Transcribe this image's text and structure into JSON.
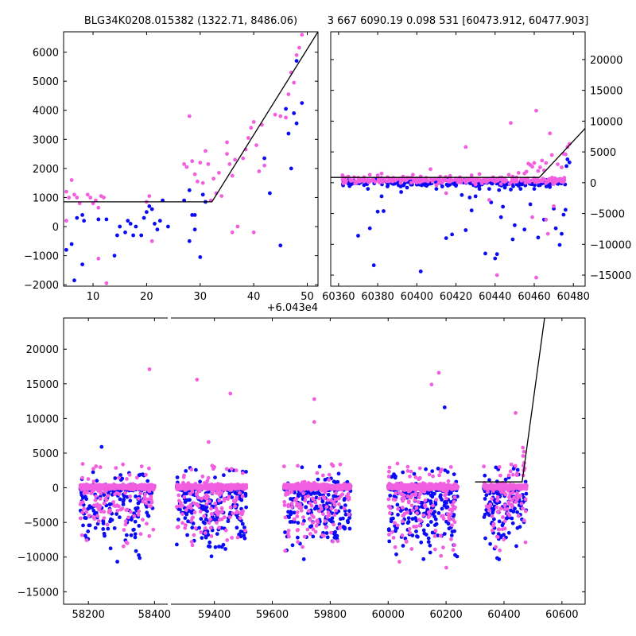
{
  "titles": {
    "left": "BLG34K0208.015382 (1322.71, 8486.06)",
    "right": "3 667 6090.19 0.098 531 [60473.912, 60477.903]"
  },
  "chart_data": [
    {
      "type": "scatter",
      "panel": "top-left",
      "xlim": [
        4.5,
        52
      ],
      "ylim": [
        -2050,
        6700
      ],
      "x_offset_label": "+6.043e4",
      "x_ticks": [
        10,
        20,
        30,
        40,
        50
      ],
      "y_ticks": [
        -2000,
        -1000,
        0,
        1000,
        2000,
        3000,
        4000,
        5000,
        6000
      ],
      "y_axis_side": "left",
      "series_colors": {
        "blue": "#0a0af5",
        "magenta": "#f25ee0",
        "model": "#000000"
      },
      "series": [
        {
          "color": "blue",
          "points": [
            [
              5,
              -800
            ],
            [
              6,
              -600
            ],
            [
              6.5,
              -1850
            ],
            [
              7,
              300
            ],
            [
              8,
              400
            ],
            [
              8.3,
              200
            ],
            [
              8,
              -1300
            ],
            [
              11,
              250
            ],
            [
              12.5,
              250
            ],
            [
              14,
              -1000
            ],
            [
              14.5,
              -300
            ],
            [
              15,
              0
            ],
            [
              16,
              -200
            ],
            [
              16.5,
              200
            ],
            [
              17,
              100
            ],
            [
              17.5,
              -300
            ],
            [
              18,
              0
            ],
            [
              19,
              -300
            ],
            [
              19.5,
              300
            ],
            [
              20,
              500
            ],
            [
              20.5,
              700
            ],
            [
              21,
              600
            ],
            [
              21.5,
              100
            ],
            [
              22,
              -100
            ],
            [
              22.5,
              200
            ],
            [
              23,
              900
            ],
            [
              24,
              0
            ],
            [
              27,
              900
            ],
            [
              28,
              1250
            ],
            [
              28,
              -500
            ],
            [
              28.5,
              400
            ],
            [
              29,
              -100
            ],
            [
              29,
              400
            ],
            [
              30,
              -1050
            ],
            [
              30.5,
              1100
            ],
            [
              31,
              850
            ],
            [
              42,
              2350
            ],
            [
              43,
              1150
            ],
            [
              45,
              -650
            ],
            [
              46,
              4050
            ],
            [
              46.5,
              3200
            ],
            [
              47,
              2000
            ],
            [
              48,
              5700
            ],
            [
              48,
              3550
            ],
            [
              49,
              4250
            ],
            [
              47.5,
              3900
            ]
          ]
        },
        {
          "color": "magenta",
          "points": [
            [
              5,
              200
            ],
            [
              5,
              1200
            ],
            [
              5.5,
              1000
            ],
            [
              6,
              1600
            ],
            [
              6.5,
              1100
            ],
            [
              7,
              1000
            ],
            [
              7.5,
              800
            ],
            [
              9,
              1100
            ],
            [
              9.5,
              1000
            ],
            [
              10,
              800
            ],
            [
              10.5,
              900
            ],
            [
              11,
              650
            ],
            [
              11,
              -1100
            ],
            [
              11.5,
              1050
            ],
            [
              12,
              1000
            ],
            [
              12.5,
              -1950
            ],
            [
              20,
              850
            ],
            [
              20.5,
              1050
            ],
            [
              21,
              -500
            ],
            [
              27,
              2150
            ],
            [
              27.5,
              2050
            ],
            [
              28,
              3800
            ],
            [
              28.5,
              2250
            ],
            [
              29,
              1800
            ],
            [
              29.5,
              1550
            ],
            [
              30,
              2200
            ],
            [
              30.5,
              1500
            ],
            [
              31,
              2600
            ],
            [
              31.5,
              2150
            ],
            [
              32,
              900
            ],
            [
              32.5,
              1650
            ],
            [
              33,
              1150
            ],
            [
              33.5,
              1850
            ],
            [
              34,
              1050
            ],
            [
              35,
              2500
            ],
            [
              35.5,
              2150
            ],
            [
              36,
              1750
            ],
            [
              36.5,
              2300
            ],
            [
              37,
              0
            ],
            [
              38,
              2350
            ],
            [
              38.5,
              2650
            ],
            [
              39,
              3050
            ],
            [
              39.5,
              3400
            ],
            [
              40,
              3600
            ],
            [
              40.5,
              2800
            ],
            [
              41,
              1900
            ],
            [
              41.5,
              3500
            ],
            [
              42,
              2100
            ],
            [
              44,
              3850
            ],
            [
              45,
              3800
            ],
            [
              46,
              3750
            ],
            [
              46.5,
              4550
            ],
            [
              47,
              5300
            ],
            [
              47.5,
              4950
            ],
            [
              48,
              5900
            ],
            [
              48.5,
              6150
            ],
            [
              49,
              6600
            ],
            [
              36,
              -200
            ],
            [
              40,
              -200
            ],
            [
              35,
              2900
            ]
          ]
        }
      ],
      "model_line": [
        [
          4.5,
          850
        ],
        [
          32.2,
          850
        ],
        [
          52,
          6700
        ]
      ]
    },
    {
      "type": "scatter",
      "panel": "top-right",
      "xlim": [
        60356,
        60486
      ],
      "ylim": [
        -16800,
        24500
      ],
      "x_ticks": [
        60360,
        60380,
        60400,
        60420,
        60440,
        60460,
        60480
      ],
      "y_ticks": [
        -15000,
        -10000,
        -5000,
        0,
        5000,
        10000,
        15000,
        20000
      ],
      "y_axis_side": "right",
      "series": [
        {
          "color": "blue",
          "points": [
            [
              60370,
              -8600
            ],
            [
              60375,
              -1000
            ],
            [
              60376,
              -7400
            ],
            [
              60378,
              -13400
            ],
            [
              60380,
              -4700
            ],
            [
              60382,
              -2200
            ],
            [
              60383,
              -4600
            ],
            [
              60385,
              -600
            ],
            [
              60388,
              -200
            ],
            [
              60390,
              0
            ],
            [
              60392,
              -1500
            ],
            [
              60395,
              -800
            ],
            [
              60397,
              -300
            ],
            [
              60400,
              -300
            ],
            [
              60402,
              -14400
            ],
            [
              60405,
              -500
            ],
            [
              60410,
              -1000
            ],
            [
              60413,
              -600
            ],
            [
              60415,
              -9000
            ],
            [
              60418,
              -8400
            ],
            [
              60420,
              -500
            ],
            [
              60423,
              -2000
            ],
            [
              60425,
              -7700
            ],
            [
              60427,
              -2400
            ],
            [
              60428,
              -4500
            ],
            [
              60429,
              -400
            ],
            [
              60430,
              -2200
            ],
            [
              60432,
              -1000
            ],
            [
              60435,
              -11500
            ],
            [
              60437,
              -1000
            ],
            [
              60438,
              -3200
            ],
            [
              60440,
              -12300
            ],
            [
              60441,
              -11600
            ],
            [
              60442,
              -1200
            ],
            [
              60443,
              -5600
            ],
            [
              60444,
              -3900
            ],
            [
              60445,
              -800
            ],
            [
              60446,
              -200
            ],
            [
              60448,
              -1100
            ],
            [
              60449,
              -9200
            ],
            [
              60450,
              -6900
            ],
            [
              60452,
              -500
            ],
            [
              60453,
              -1000
            ],
            [
              60455,
              -7600
            ],
            [
              60458,
              -3500
            ],
            [
              60460,
              -1000
            ],
            [
              60462,
              -8900
            ],
            [
              60465,
              -6000
            ],
            [
              60468,
              -700
            ],
            [
              60470,
              -4200
            ],
            [
              60471,
              -7400
            ],
            [
              60473,
              -10100
            ],
            [
              60474,
              -8300
            ],
            [
              60475,
              -5200
            ],
            [
              60476,
              -4400
            ],
            [
              60477,
              3800
            ],
            [
              60478,
              3300
            ],
            [
              60476.5,
              2700
            ]
          ]
        },
        {
          "color": "magenta",
          "points": [
            [
              60362,
              1200
            ],
            [
              60365,
              1000
            ],
            [
              60368,
              900
            ],
            [
              60370,
              800
            ],
            [
              60373,
              600
            ],
            [
              60376,
              1300
            ],
            [
              60380,
              1200
            ],
            [
              60382,
              1500
            ],
            [
              60385,
              900
            ],
            [
              60388,
              800
            ],
            [
              60390,
              600
            ],
            [
              60393,
              1000
            ],
            [
              60395,
              800
            ],
            [
              60398,
              1300
            ],
            [
              60400,
              700
            ],
            [
              60402,
              900
            ],
            [
              60405,
              600
            ],
            [
              60407,
              2200
            ],
            [
              60410,
              -400
            ],
            [
              60412,
              1000
            ],
            [
              60415,
              -1700
            ],
            [
              60417,
              1100
            ],
            [
              60420,
              700
            ],
            [
              60422,
              900
            ],
            [
              60425,
              5800
            ],
            [
              60428,
              1200
            ],
            [
              60430,
              -300
            ],
            [
              60432,
              1400
            ],
            [
              60435,
              200
            ],
            [
              60437,
              -2800
            ],
            [
              60439,
              900
            ],
            [
              60441,
              -15000
            ],
            [
              60443,
              -200
            ],
            [
              60445,
              700
            ],
            [
              60447,
              1300
            ],
            [
              60448,
              9700
            ],
            [
              60449,
              1000
            ],
            [
              60452,
              1600
            ],
            [
              60455,
              1500
            ],
            [
              60456,
              1800
            ],
            [
              60457,
              3100
            ],
            [
              60458,
              2900
            ],
            [
              60459,
              2600
            ],
            [
              60460,
              3200
            ],
            [
              60461,
              11700
            ],
            [
              60462,
              1900
            ],
            [
              60463,
              2500
            ],
            [
              60464,
              3600
            ],
            [
              60465,
              2000
            ],
            [
              60466,
              3200
            ],
            [
              60467,
              -8300
            ],
            [
              60468,
              8000
            ],
            [
              60469,
              4500
            ],
            [
              60470,
              -3800
            ],
            [
              60472,
              3000
            ],
            [
              60474,
              2500
            ],
            [
              60475,
              4700
            ],
            [
              60476,
              4600
            ],
            [
              60477,
              5800
            ],
            [
              60478,
              6300
            ],
            [
              60461,
              -15400
            ],
            [
              60459,
              -5600
            ],
            [
              60466,
              -6000
            ]
          ]
        }
      ],
      "model_line": [
        [
          60356,
          850
        ],
        [
          60462.6,
          850
        ],
        [
          60486,
          8800
        ]
      ]
    },
    {
      "type": "scatter",
      "panel": "bottom",
      "xlim": [
        58125,
        60680
      ],
      "ylim": [
        -16800,
        24500
      ],
      "x_ticks": [
        58200,
        58400,
        59400,
        59600,
        59800,
        60000,
        60200,
        60400,
        60600
      ],
      "y_ticks": [
        -15000,
        -10000,
        -5000,
        0,
        5000,
        10000,
        15000,
        20000
      ],
      "y_axis_side": "left",
      "broken_axis_gap": [
        58440,
        59250
      ],
      "seasons": [
        [
          58175,
          58400
        ],
        [
          59270,
          59510
        ],
        [
          59640,
          59870
        ],
        [
          60000,
          60240
        ],
        [
          60330,
          60478
        ]
      ],
      "highlight_points": [
        {
          "color": "magenta",
          "x": 58385,
          "y": 17100
        },
        {
          "color": "magenta",
          "x": 59340,
          "y": 15600
        },
        {
          "color": "magenta",
          "x": 59455,
          "y": 13600
        },
        {
          "color": "magenta",
          "x": 59380,
          "y": 6600
        },
        {
          "color": "magenta",
          "x": 59745,
          "y": 12800
        },
        {
          "color": "magenta",
          "x": 59745,
          "y": 9500
        },
        {
          "color": "magenta",
          "x": 60150,
          "y": 14900
        },
        {
          "color": "magenta",
          "x": 60175,
          "y": 16600
        },
        {
          "color": "blue",
          "x": 60195,
          "y": 11600
        },
        {
          "color": "magenta",
          "x": 60440,
          "y": 10800
        },
        {
          "color": "blue",
          "x": 58240,
          "y": 5900
        },
        {
          "color": "blue",
          "x": 60090,
          "y": 2000
        }
      ],
      "model_line": [
        [
          60300,
          850
        ],
        [
          60462.6,
          850
        ],
        [
          60540,
          24500
        ]
      ]
    }
  ]
}
